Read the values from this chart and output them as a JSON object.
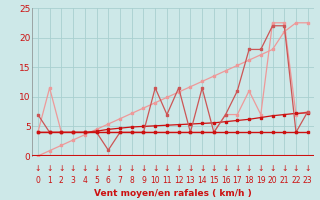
{
  "x": [
    0,
    1,
    2,
    3,
    4,
    5,
    6,
    7,
    8,
    9,
    10,
    11,
    12,
    13,
    14,
    15,
    16,
    17,
    18,
    19,
    20,
    21,
    22,
    23
  ],
  "line_flat": [
    4,
    4,
    4,
    4,
    4,
    4,
    4,
    4,
    4,
    4,
    4,
    4,
    4,
    4,
    4,
    4,
    4,
    4,
    4,
    4,
    4,
    4,
    4,
    4
  ],
  "line_mean": [
    4,
    4,
    4,
    4,
    4,
    4.2,
    4.5,
    4.7,
    4.9,
    5.0,
    5.1,
    5.2,
    5.3,
    5.4,
    5.5,
    5.6,
    5.8,
    6.0,
    6.2,
    6.5,
    6.8,
    7.0,
    7.2,
    7.3
  ],
  "line_gust_trend": [
    0,
    0.9,
    1.8,
    2.7,
    3.6,
    4.5,
    5.4,
    6.3,
    7.2,
    8.1,
    9.0,
    9.9,
    10.8,
    11.7,
    12.6,
    13.5,
    14.4,
    15.3,
    16.2,
    17.1,
    18.0,
    21.0,
    22.5,
    22.5
  ],
  "line_wind": [
    7,
    4,
    4,
    4,
    4,
    4,
    1,
    4,
    4,
    4,
    11.5,
    7,
    11.5,
    4,
    11.5,
    4,
    7,
    11,
    18,
    18,
    22,
    22,
    4,
    7.5
  ],
  "line_gust": [
    4,
    11.5,
    4,
    4,
    4,
    4,
    4,
    4,
    4,
    4,
    4,
    4,
    4,
    4,
    4,
    4,
    7,
    7,
    11,
    7,
    22.5,
    22.5,
    7,
    7.5
  ],
  "xlim": [
    -0.5,
    23.5
  ],
  "ylim": [
    0,
    25
  ],
  "yticks": [
    0,
    5,
    10,
    15,
    20,
    25
  ],
  "xticks": [
    0,
    1,
    2,
    3,
    4,
    5,
    6,
    7,
    8,
    9,
    10,
    11,
    12,
    13,
    14,
    15,
    16,
    17,
    18,
    19,
    20,
    21,
    22,
    23
  ],
  "xlabel": "Vent moyen/en rafales ( km/h )",
  "bg_color": "#cde8e8",
  "grid_color": "#a8d0d0",
  "line_color_dark": "#cc1111",
  "line_color_mid": "#cc5555",
  "line_color_light": "#ee9999",
  "tick_label_color": "#cc1111",
  "label_color": "#cc1111",
  "axis_bar_color": "#cc1111"
}
